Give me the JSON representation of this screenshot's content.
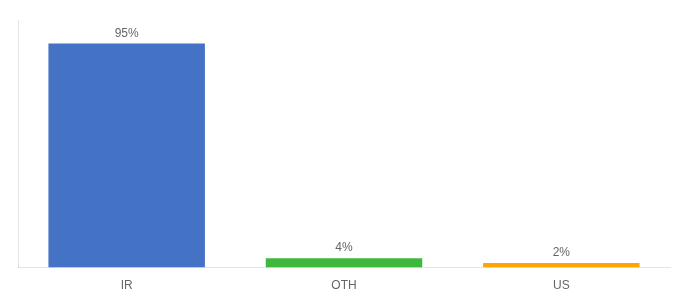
{
  "chart_data": {
    "type": "bar",
    "categories": [
      "IR",
      "OTH",
      "US"
    ],
    "values": [
      95,
      4,
      2
    ],
    "value_labels": [
      "95%",
      "4%",
      "2%"
    ],
    "colors": [
      "#4472C4",
      "#3DB83D",
      "#FFA500"
    ],
    "ylim": [
      0,
      105
    ],
    "data_labels": true,
    "tick_labels": "x",
    "grid": false
  }
}
